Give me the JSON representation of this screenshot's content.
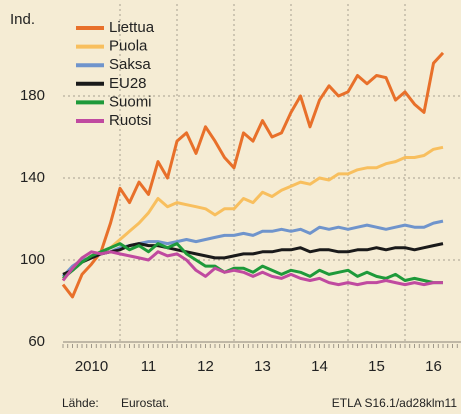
{
  "chart_data": {
    "type": "line",
    "y_unit": "Ind.",
    "x": [
      2010,
      2010.167,
      2010.333,
      2010.5,
      2010.667,
      2010.833,
      2011,
      2011.167,
      2011.333,
      2011.5,
      2011.667,
      2011.833,
      2012,
      2012.167,
      2012.333,
      2012.5,
      2012.667,
      2012.833,
      2013,
      2013.167,
      2013.333,
      2013.5,
      2013.667,
      2013.833,
      2014,
      2014.167,
      2014.333,
      2014.5,
      2014.667,
      2014.833,
      2015,
      2015.167,
      2015.333,
      2015.5,
      2015.667,
      2015.833,
      2016,
      2016.167,
      2016.333,
      2016.5,
      2016.667
    ],
    "series": [
      {
        "name": "Liettua",
        "color": "#e8702a",
        "values": [
          88,
          82,
          93,
          98,
          104,
          118,
          135,
          128,
          138,
          132,
          148,
          140,
          158,
          162,
          152,
          165,
          158,
          150,
          145,
          162,
          158,
          168,
          160,
          162,
          172,
          180,
          165,
          178,
          185,
          180,
          182,
          190,
          186,
          190,
          189,
          178,
          182,
          176,
          172,
          196,
          201
        ]
      },
      {
        "name": "Puola",
        "color": "#f8bf5e",
        "values": [
          90,
          96,
          99,
          102,
          104,
          106,
          110,
          114,
          118,
          123,
          130,
          126,
          128,
          127,
          126,
          125,
          122,
          125,
          125,
          130,
          128,
          133,
          131,
          134,
          136,
          138,
          137,
          140,
          139,
          142,
          142,
          144,
          145,
          145,
          147,
          148,
          150,
          150,
          151,
          154,
          155
        ]
      },
      {
        "name": "Saksa",
        "color": "#6f94cc",
        "values": [
          92,
          97,
          100,
          101,
          103,
          104,
          106,
          107,
          108,
          109,
          109,
          108,
          109,
          110,
          109,
          110,
          111,
          112,
          112,
          113,
          112,
          114,
          114,
          115,
          114,
          115,
          113,
          116,
          115,
          116,
          115,
          116,
          117,
          116,
          115,
          116,
          117,
          116,
          116,
          118,
          119
        ]
      },
      {
        "name": "EU28",
        "color": "#1a1a1a",
        "values": [
          93,
          95,
          99,
          101,
          103,
          104,
          105,
          107,
          108,
          107,
          107,
          106,
          105,
          104,
          103,
          102,
          101,
          101,
          102,
          103,
          103,
          104,
          104,
          105,
          105,
          106,
          104,
          105,
          105,
          104,
          104,
          105,
          105,
          106,
          105,
          106,
          106,
          105,
          106,
          107,
          108
        ]
      },
      {
        "name": "Suomi",
        "color": "#1e9a3a",
        "values": [
          91,
          95,
          99,
          102,
          104,
          106,
          108,
          105,
          107,
          104,
          108,
          106,
          108,
          103,
          100,
          97,
          97,
          94,
          96,
          96,
          94,
          97,
          95,
          93,
          95,
          94,
          92,
          95,
          93,
          94,
          95,
          92,
          94,
          92,
          91,
          93,
          90,
          91,
          90,
          89,
          89
        ]
      },
      {
        "name": "Ruotsi",
        "color": "#c04aa0",
        "values": [
          90,
          96,
          101,
          104,
          103,
          104,
          103,
          102,
          101,
          100,
          104,
          102,
          103,
          100,
          95,
          92,
          96,
          94,
          95,
          94,
          92,
          94,
          92,
          91,
          93,
          91,
          90,
          91,
          89,
          88,
          89,
          88,
          89,
          89,
          90,
          89,
          88,
          89,
          88,
          89,
          89
        ]
      }
    ],
    "xlim": [
      2010,
      2017
    ],
    "xticks": [
      {
        "value": 2010.5,
        "label": "2010"
      },
      {
        "value": 2011.5,
        "label": "11"
      },
      {
        "value": 2012.5,
        "label": "12"
      },
      {
        "value": 2013.5,
        "label": "13"
      },
      {
        "value": 2014.5,
        "label": "14"
      },
      {
        "value": 2015.5,
        "label": "15"
      },
      {
        "value": 2016.5,
        "label": "16"
      }
    ],
    "x_gridlines": [
      2011,
      2012,
      2013,
      2014,
      2015,
      2016
    ],
    "ylim": [
      60,
      220
    ],
    "yticks": [
      60,
      100,
      140,
      180
    ],
    "grid": true,
    "legend": "upper left",
    "source_label": "Lähde:",
    "source": "Eurostat.",
    "credit": "ETLA S16.1/ad28klm11"
  }
}
